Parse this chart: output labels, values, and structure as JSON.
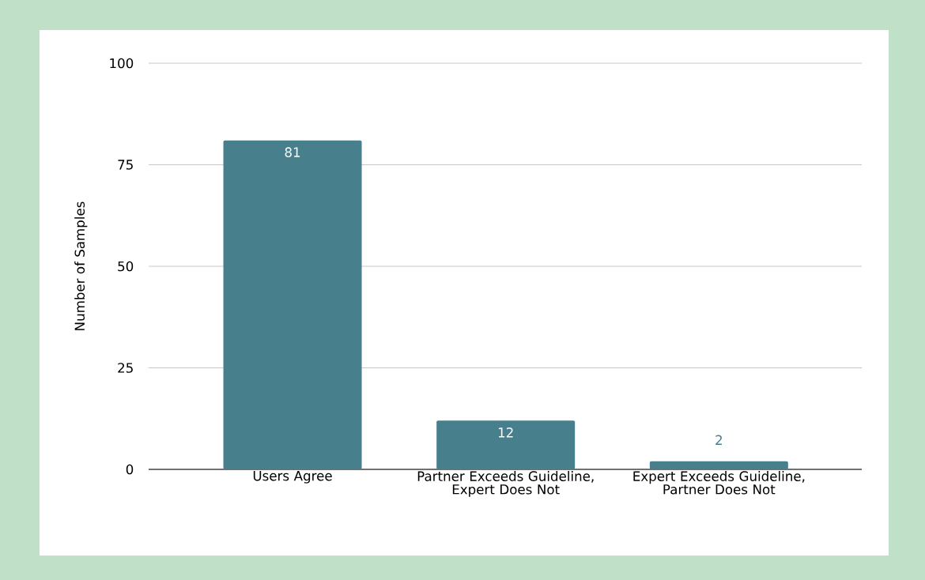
{
  "chart_data": {
    "type": "bar",
    "ylabel": "Number of Samples",
    "categories": [
      "Users Agree",
      "Partner Exceeds Guideline, Expert Does Not",
      "Expert Exceeds Guideline, Partner Does Not"
    ],
    "values": [
      81,
      12,
      2
    ],
    "color": "#477f8c",
    "ylim": [
      0,
      100
    ],
    "yticks": [
      0,
      25,
      50,
      75,
      100
    ],
    "grid": "y",
    "data_labels": true
  }
}
